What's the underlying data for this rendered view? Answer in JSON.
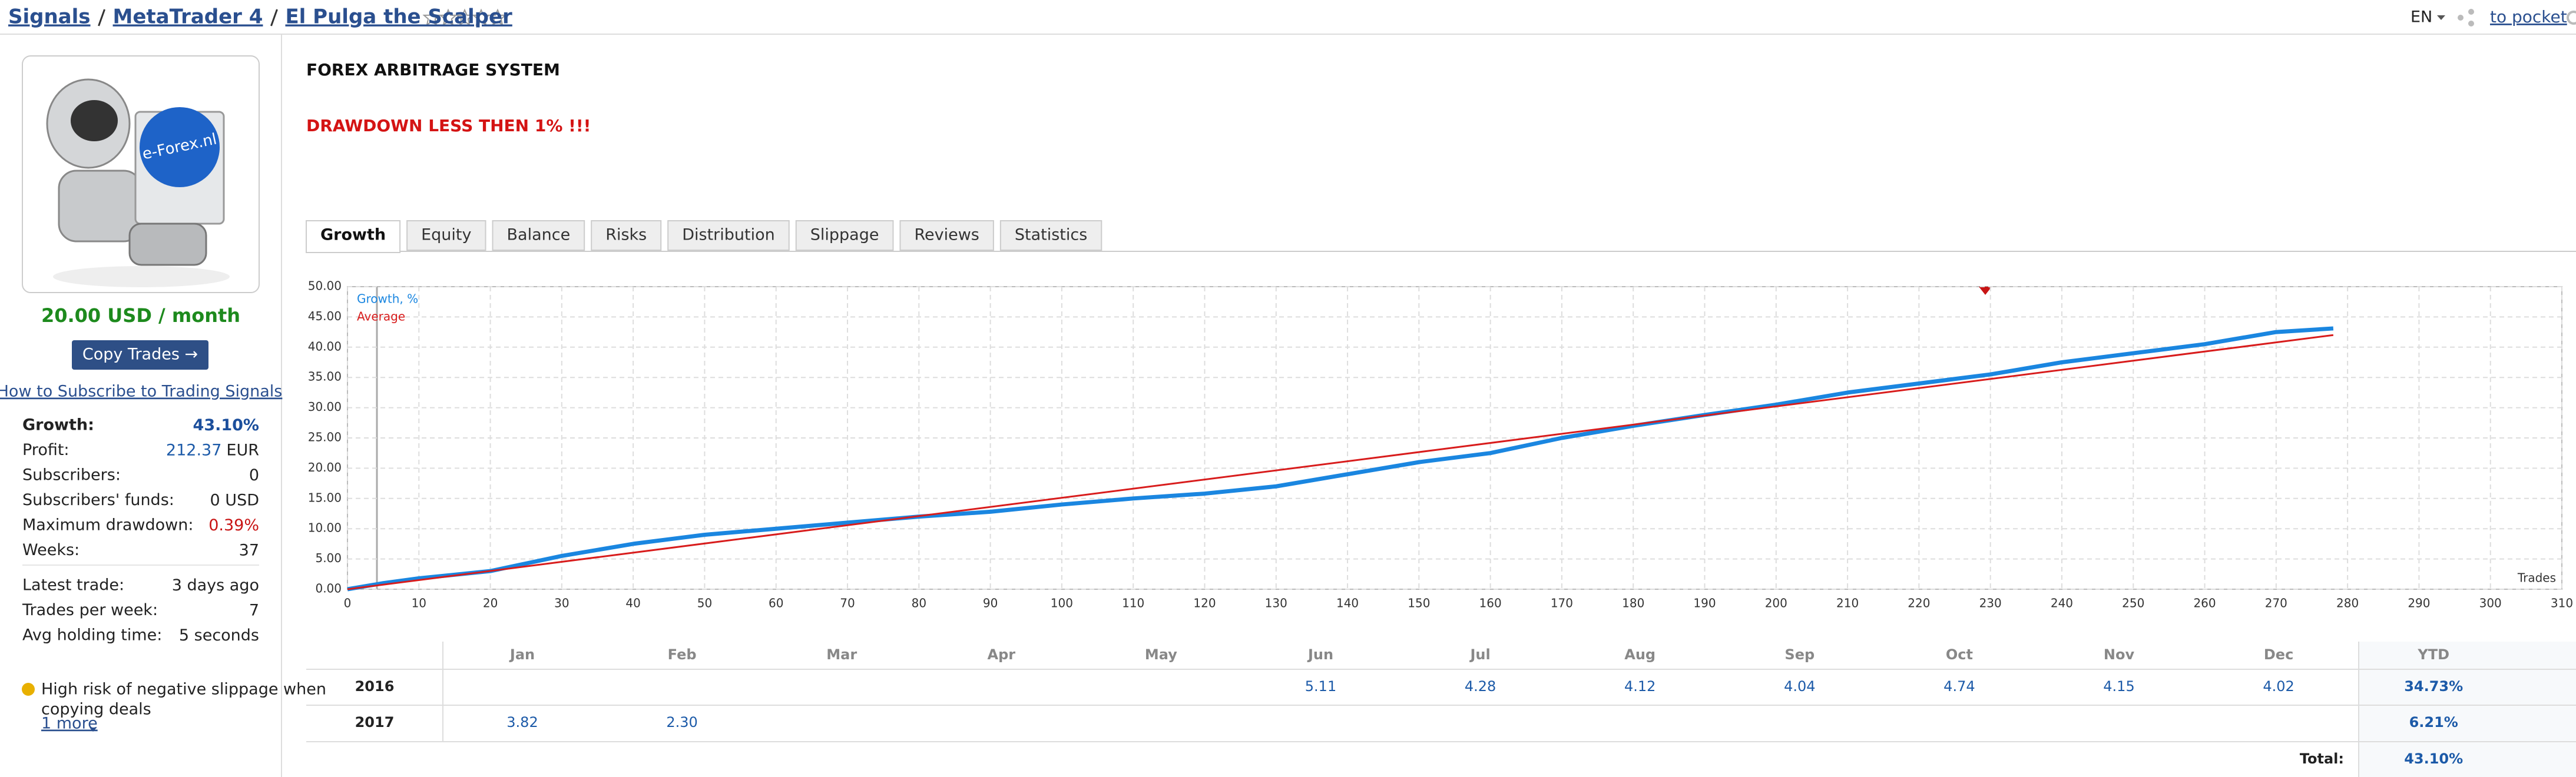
{
  "breadcrumbs": [
    "Signals",
    "MetaTrader 4",
    "El Pulga the Scalper"
  ],
  "header": {
    "language": "EN",
    "pocket": "to pocket"
  },
  "sidebar": {
    "avatar_text": "e-Forex.nl",
    "price": "20.00 USD / month",
    "button": "Copy Trades →",
    "subscribe_link": "How to Subscribe to Trading Signals",
    "stats": [
      {
        "label": "Growth:",
        "value": "43.10%",
        "color": "#1c4f9c"
      },
      {
        "label": "Profit:",
        "value": "212.37",
        "unit": "EUR",
        "color": "#1c5aa8"
      },
      {
        "label": "Subscribers:",
        "value": "0"
      },
      {
        "label": "Subscribers' funds:",
        "value": "0 USD"
      },
      {
        "label": "Maximum drawdown:",
        "value": "0.39%",
        "color": "#c81414"
      },
      {
        "label": "Weeks:",
        "value": "37"
      }
    ],
    "trade_stats": [
      {
        "label": "Latest trade:",
        "value": "3 days ago"
      },
      {
        "label": "Trades per week:",
        "value": "7"
      },
      {
        "label": "Avg holding time:",
        "value": "5 seconds"
      }
    ],
    "warning": [
      "High risk of negative slippage when",
      "copying deals"
    ],
    "more": "1 more"
  },
  "description": {
    "title": "FOREX ARBITRAGE SYSTEM",
    "note": "DRAWDOWN LESS THEN 1% !!!"
  },
  "tabs": [
    "Growth",
    "Equity",
    "Balance",
    "Risks",
    "Distribution",
    "Slippage",
    "Reviews",
    "Statistics"
  ],
  "active_tab": 0,
  "chart": {
    "type": "line",
    "x_label": "Trades",
    "series": [
      {
        "name": "Growth, %",
        "color": "#1a86e0",
        "x": [
          0,
          5,
          10,
          20,
          30,
          40,
          50,
          60,
          70,
          80,
          90,
          100,
          110,
          120,
          130,
          140,
          150,
          160,
          170,
          180,
          190,
          200,
          210,
          220,
          230,
          240,
          250,
          260,
          270,
          278
        ],
        "values": [
          0,
          1,
          1.8,
          3,
          5.5,
          7.5,
          9,
          10,
          11,
          12,
          12.8,
          14,
          15,
          15.8,
          17,
          19,
          21,
          22.5,
          25,
          27,
          28.8,
          30.5,
          32.5,
          34,
          35.5,
          37.5,
          39,
          40.5,
          42.5,
          43.1
        ]
      },
      {
        "name": "Average",
        "color": "#d81c1c",
        "x": [
          0,
          278
        ],
        "values": [
          0,
          42
        ]
      }
    ],
    "xlim": [
      0,
      310
    ],
    "xticks": [
      0,
      10,
      20,
      30,
      40,
      50,
      60,
      70,
      80,
      90,
      100,
      110,
      120,
      130,
      140,
      150,
      160,
      170,
      180,
      190,
      200,
      210,
      220,
      230,
      240,
      250,
      260,
      270,
      280,
      290,
      300,
      310
    ],
    "ylim": [
      0,
      50
    ],
    "yticks": [
      {
        "value": 0,
        "label": "0.00"
      },
      {
        "value": 5,
        "label": "5.00"
      },
      {
        "value": 10,
        "label": "10.00"
      },
      {
        "value": 15,
        "label": "15.00"
      },
      {
        "value": 20,
        "label": "20.00"
      },
      {
        "value": 25,
        "label": "25.00"
      },
      {
        "value": 30,
        "label": "30.00"
      },
      {
        "value": 35,
        "label": "35.00"
      },
      {
        "value": 40,
        "label": "40.00"
      },
      {
        "value": 45,
        "label": "45.00"
      },
      {
        "value": 50,
        "label": "50.00"
      }
    ],
    "grid": true
  },
  "table": {
    "columns": [
      "Jan",
      "Feb",
      "Mar",
      "Apr",
      "May",
      "Jun",
      "Jul",
      "Aug",
      "Sep",
      "Oct",
      "Nov",
      "Dec",
      "YTD"
    ],
    "rows": [
      {
        "year": "2016",
        "cells": [
          null,
          null,
          null,
          null,
          null,
          "5.11",
          "4.28",
          "4.12",
          "4.04",
          "4.74",
          "4.15",
          "4.02",
          "34.73%"
        ]
      },
      {
        "year": "2017",
        "cells": [
          "3.82",
          "2.30",
          null,
          null,
          null,
          null,
          null,
          null,
          null,
          null,
          null,
          null,
          "6.21%"
        ]
      }
    ],
    "total_label": "Total:",
    "total": "43.10%"
  }
}
